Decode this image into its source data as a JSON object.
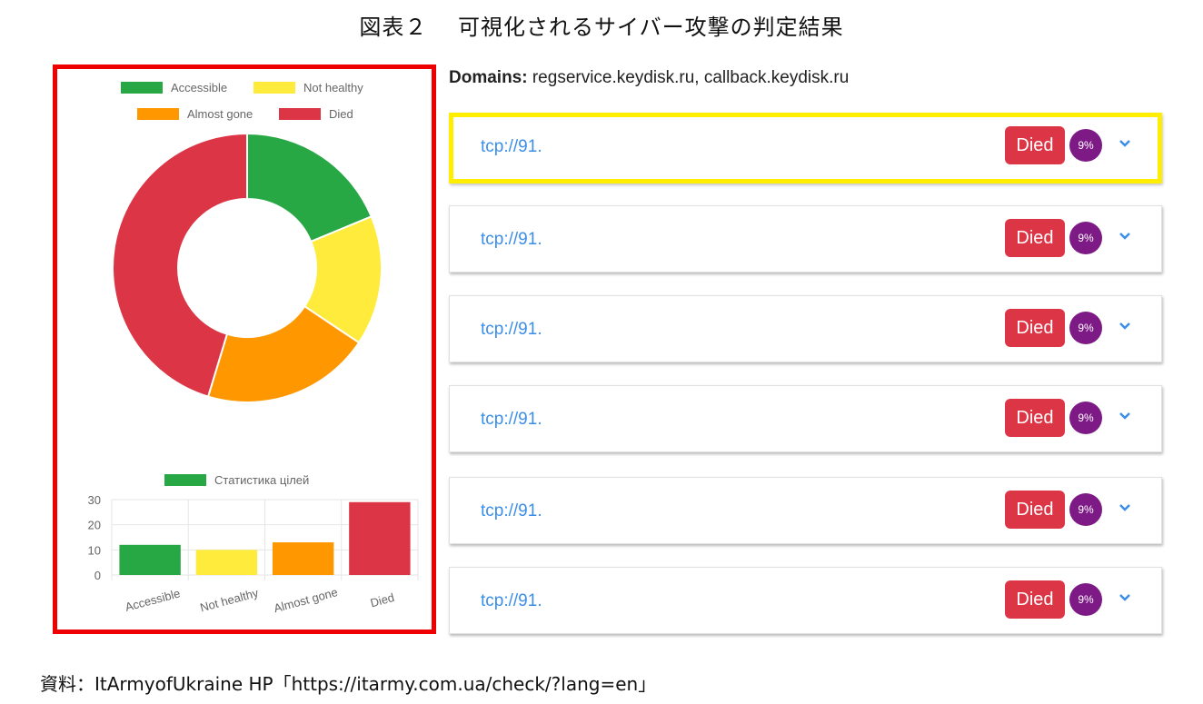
{
  "figure": {
    "title": "図表２　 可視化されるサイバー攻撃の判定結果",
    "source": "資料：ItArmyofUkraine HP「https://itarmy.com.ua/check/?lang=en」"
  },
  "domains": {
    "label": "Domains:",
    "value": "regservice.keydisk.ru, callback.keydisk.ru"
  },
  "targets": [
    {
      "address": "tcp://91.",
      "status": "Died",
      "percent": "9%",
      "highlighted": true
    },
    {
      "address": "tcp://91.",
      "status": "Died",
      "percent": "9%",
      "highlighted": false
    },
    {
      "address": "tcp://91.",
      "status": "Died",
      "percent": "9%",
      "highlighted": false
    },
    {
      "address": "tcp://91.",
      "status": "Died",
      "percent": "9%",
      "highlighted": false
    },
    {
      "address": "tcp://91.",
      "status": "Died",
      "percent": "9%",
      "highlighted": false
    },
    {
      "address": "tcp://91.",
      "status": "Died",
      "percent": "9%",
      "highlighted": false
    }
  ],
  "colors": {
    "accessible": "#28a745",
    "not_healthy": "#ffeb3b",
    "almost_gone": "#ff9800",
    "died": "#dc3545",
    "status_died": "#dc3545",
    "percent_badge": "#7d1a86",
    "link": "#3b8ee8",
    "highlight_border": "#ffee00",
    "panel_border": "#ee0000"
  },
  "icons": {
    "expand": "chevron-down-icon"
  },
  "chart_data": [
    {
      "type": "pie",
      "donut": true,
      "legend_position": "top",
      "categories": [
        "Accessible",
        "Not healthy",
        "Almost gone",
        "Died"
      ],
      "values": [
        12,
        10,
        13,
        29
      ],
      "colors": [
        "#28a745",
        "#ffeb3b",
        "#ff9800",
        "#dc3545"
      ]
    },
    {
      "type": "bar",
      "legend_position": "top",
      "series": [
        {
          "name": "Статистика цілей",
          "values": [
            12,
            10,
            13,
            29
          ]
        }
      ],
      "categories": [
        "Accessible",
        "Not healthy",
        "Almost gone",
        "Died"
      ],
      "colors": [
        "#28a745",
        "#ffeb3b",
        "#ff9800",
        "#dc3545"
      ],
      "ylim": [
        0,
        30
      ],
      "yticks": [
        0,
        10,
        20,
        30
      ],
      "grid": true
    }
  ]
}
